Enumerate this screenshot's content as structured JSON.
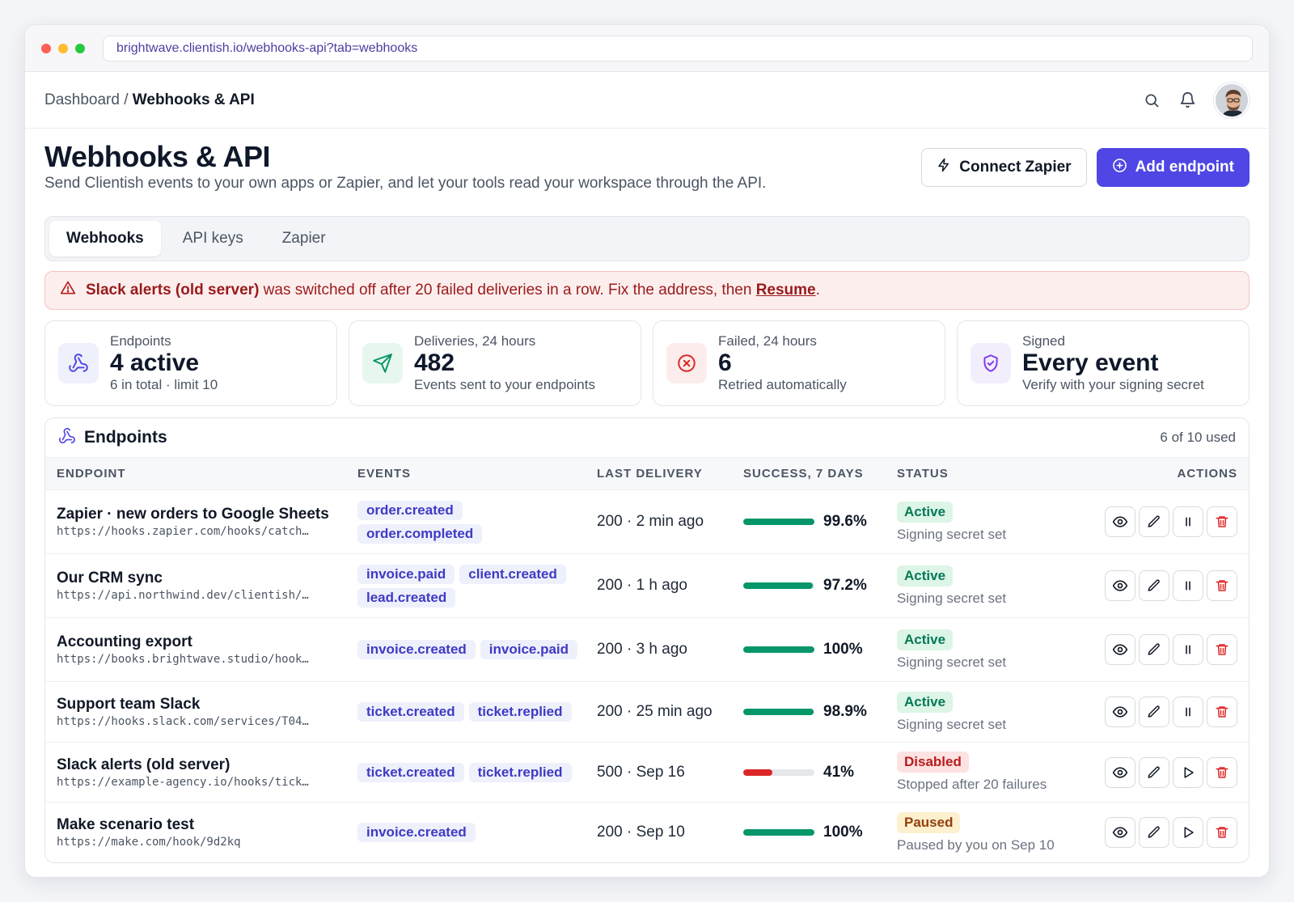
{
  "browser": {
    "url": "brightwave.clientish.io/webhooks-api?tab=webhooks"
  },
  "breadcrumb": {
    "parent": "Dashboard",
    "separator": "/",
    "current": "Webhooks & API"
  },
  "header": {
    "title": "Webhooks & API",
    "subtitle": "Send Clientish events to your own apps or Zapier, and let your tools read your workspace through the API.",
    "connect_label": "Connect Zapier",
    "add_label": "Add endpoint"
  },
  "tabs": [
    {
      "label": "Webhooks",
      "active": true
    },
    {
      "label": "API keys",
      "active": false
    },
    {
      "label": "Zapier",
      "active": false
    }
  ],
  "alert": {
    "name": "Slack alerts (old server)",
    "text": "was switched off after 20 failed deliveries in a row. Fix the address, then",
    "link": "Resume",
    "end": "."
  },
  "stats": [
    {
      "label": "Endpoints",
      "value": "4 active",
      "note": "6 in total · limit 10",
      "icon": "webhook-icon"
    },
    {
      "label": "Deliveries, 24 hours",
      "value": "482",
      "note": "Events sent to your endpoints",
      "icon": "send-icon"
    },
    {
      "label": "Failed, 24 hours",
      "value": "6",
      "note": "Retried automatically",
      "icon": "x-circle-icon"
    },
    {
      "label": "Signed",
      "value": "Every event",
      "note": "Verify with your signing secret",
      "icon": "shield-icon"
    }
  ],
  "panel": {
    "title": "Endpoints",
    "count": "6 of 10 used"
  },
  "columns": {
    "endpoint": "ENDPOINT",
    "events": "EVENTS",
    "last": "LAST DELIVERY",
    "success": "SUCCESS, 7 DAYS",
    "status": "STATUS",
    "actions": "ACTIONS"
  },
  "colors": {
    "accent": "#4f46e5",
    "success": "#059669",
    "danger": "#dc2626"
  },
  "rows": [
    {
      "name": "Zapier · new orders to Google Sheets",
      "url": "https://hooks.zapier.com/hooks/catch…",
      "events": [
        "order.created",
        "order.completed"
      ],
      "last": "200 · 2 min ago",
      "pct": "99.6%",
      "pct_value": 99.6,
      "status": "Active",
      "status_type": "active",
      "note": "Signing secret set",
      "toggle": "pause"
    },
    {
      "name": "Our CRM sync",
      "url": "https://api.northwind.dev/clientish/…",
      "events": [
        "invoice.paid",
        "client.created",
        "lead.created"
      ],
      "last": "200 · 1 h ago",
      "pct": "97.2%",
      "pct_value": 97.2,
      "status": "Active",
      "status_type": "active",
      "note": "Signing secret set",
      "toggle": "pause"
    },
    {
      "name": "Accounting export",
      "url": "https://books.brightwave.studio/hook…",
      "events": [
        "invoice.created",
        "invoice.paid"
      ],
      "last": "200 · 3 h ago",
      "pct": "100%",
      "pct_value": 100,
      "status": "Active",
      "status_type": "active",
      "note": "Signing secret set",
      "toggle": "pause"
    },
    {
      "name": "Support team Slack",
      "url": "https://hooks.slack.com/services/T04…",
      "events": [
        "ticket.created",
        "ticket.replied"
      ],
      "last": "200 · 25 min ago",
      "pct": "98.9%",
      "pct_value": 98.9,
      "status": "Active",
      "status_type": "active",
      "note": "Signing secret set",
      "toggle": "pause"
    },
    {
      "name": "Slack alerts (old server)",
      "url": "https://example-agency.io/hooks/tick…",
      "events": [
        "ticket.created",
        "ticket.replied"
      ],
      "last": "500 · Sep 16",
      "pct": "41%",
      "pct_value": 41,
      "status": "Disabled",
      "status_type": "disabled",
      "note": "Stopped after 20 failures",
      "toggle": "play"
    },
    {
      "name": "Make scenario test",
      "url": "https://make.com/hook/9d2kq",
      "events": [
        "invoice.created"
      ],
      "last": "200 · Sep 10",
      "pct": "100%",
      "pct_value": 100,
      "status": "Paused",
      "status_type": "paused",
      "note": "Paused by you on Sep 10",
      "toggle": "play"
    }
  ]
}
